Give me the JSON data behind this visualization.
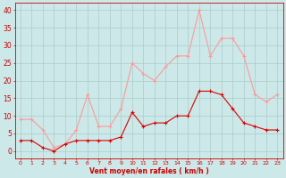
{
  "x": [
    0,
    1,
    2,
    3,
    4,
    5,
    6,
    7,
    8,
    9,
    10,
    11,
    12,
    13,
    14,
    15,
    16,
    17,
    18,
    19,
    20,
    21,
    22,
    23
  ],
  "vent_moyen": [
    3,
    3,
    1,
    0,
    2,
    3,
    3,
    3,
    3,
    4,
    11,
    7,
    8,
    8,
    10,
    10,
    17,
    17,
    16,
    12,
    8,
    7,
    6,
    6
  ],
  "rafales": [
    9,
    9,
    6,
    1,
    2,
    6,
    16,
    7,
    7,
    12,
    25,
    22,
    20,
    24,
    27,
    27,
    40,
    27,
    32,
    32,
    27,
    16,
    14,
    16
  ],
  "line_color_dark": "#dd0000",
  "line_color_light": "#ff9999",
  "bg_color": "#cce8e8",
  "grid_color": "#aacccc",
  "xlabel": "Vent moyen/en rafales ( km/h )",
  "xlabel_color": "#cc0000",
  "tick_color": "#cc0000",
  "ylim": [
    -2,
    42
  ],
  "yticks": [
    0,
    5,
    10,
    15,
    20,
    25,
    30,
    35,
    40
  ],
  "xlim": [
    -0.5,
    23.5
  ],
  "markersize": 2.5,
  "linewidth": 0.8
}
